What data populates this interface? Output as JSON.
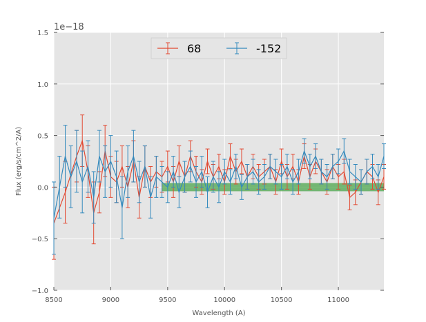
{
  "chart_data": {
    "type": "line",
    "title": "",
    "xlabel": "Wavelength (A)",
    "ylabel": "Flux (erg/s/cm^2/A)",
    "y_offset_text": "1e−18",
    "xlim": [
      8500,
      11400
    ],
    "ylim": [
      -1.0,
      1.5
    ],
    "x_ticks": [
      8500,
      9000,
      9500,
      10000,
      10500,
      11000
    ],
    "x_tick_labels": [
      "8500",
      "9000",
      "9500",
      "10000",
      "10500",
      "11000"
    ],
    "y_ticks": [
      -1.0,
      -0.5,
      0.0,
      0.5,
      1.0,
      1.5
    ],
    "y_tick_labels": [
      "−1.0",
      "−0.5",
      "0.0",
      "0.5",
      "1.0",
      "1.5"
    ],
    "grid": true,
    "legend_position": "top-center",
    "colors": {
      "background": "#e5e5e5",
      "series_68": "#e24a33",
      "series_neg152": "#348abd",
      "band": "#4ca64c",
      "grid": "#ffffff"
    },
    "band": {
      "x_start": 9450,
      "x_end": 11400,
      "y_low": -0.04,
      "y_high": 0.04
    },
    "series": [
      {
        "name": "68",
        "x": [
          8500,
          8600,
          8700,
          8750,
          8800,
          8850,
          8900,
          8950,
          9000,
          9050,
          9100,
          9150,
          9200,
          9250,
          9300,
          9350,
          9400,
          9450,
          9500,
          9550,
          9600,
          9650,
          9700,
          9750,
          9800,
          9850,
          9900,
          9950,
          10000,
          10050,
          10100,
          10150,
          10200,
          10250,
          10300,
          10350,
          10400,
          10450,
          10500,
          10550,
          10600,
          10650,
          10700,
          10750,
          10800,
          10850,
          10900,
          10950,
          11000,
          11050,
          11100,
          11150,
          11200,
          11250,
          11300,
          11350,
          11400
        ],
        "y": [
          -0.35,
          -0.05,
          0.3,
          0.45,
          0.15,
          -0.25,
          -0.05,
          0.35,
          0.1,
          0.05,
          0.2,
          0.0,
          0.25,
          -0.1,
          0.2,
          0.05,
          0.15,
          0.1,
          0.2,
          0.05,
          0.25,
          0.1,
          0.3,
          0.15,
          0.05,
          0.25,
          0.1,
          0.2,
          0.05,
          0.3,
          0.15,
          0.25,
          0.1,
          0.2,
          0.1,
          0.15,
          0.2,
          0.05,
          0.25,
          0.1,
          0.2,
          0.05,
          0.3,
          0.1,
          0.25,
          0.15,
          0.05,
          0.2,
          0.1,
          0.15,
          -0.1,
          -0.05,
          0.05,
          0.15,
          0.1,
          -0.05,
          0.1
        ],
        "error": [
          0.35,
          0.3,
          0.25,
          0.25,
          0.25,
          0.3,
          0.2,
          0.25,
          0.2,
          0.2,
          0.2,
          0.2,
          0.2,
          0.2,
          0.2,
          0.15,
          0.15,
          0.15,
          0.15,
          0.15,
          0.15,
          0.15,
          0.15,
          0.15,
          0.12,
          0.12,
          0.12,
          0.12,
          0.12,
          0.12,
          0.12,
          0.12,
          0.12,
          0.12,
          0.12,
          0.12,
          0.12,
          0.12,
          0.12,
          0.12,
          0.12,
          0.12,
          0.12,
          0.12,
          0.12,
          0.12,
          0.12,
          0.12,
          0.12,
          0.12,
          0.12,
          0.12,
          0.12,
          0.12,
          0.12,
          0.12,
          0.12
        ]
      },
      {
        "name": "-152",
        "x": [
          8500,
          8550,
          8600,
          8650,
          8700,
          8750,
          8800,
          8850,
          8900,
          8950,
          9000,
          9050,
          9100,
          9150,
          9200,
          9250,
          9300,
          9350,
          9400,
          9450,
          9500,
          9550,
          9600,
          9650,
          9700,
          9750,
          9800,
          9850,
          9900,
          9950,
          10000,
          10050,
          10100,
          10150,
          10200,
          10250,
          10300,
          10350,
          10400,
          10450,
          10500,
          10550,
          10600,
          10650,
          10700,
          10750,
          10800,
          10850,
          10900,
          10950,
          11000,
          11050,
          11100,
          11150,
          11200,
          11250,
          11300,
          11350,
          11400
        ],
        "y": [
          -0.3,
          0.0,
          0.3,
          0.1,
          0.25,
          0.05,
          0.2,
          -0.1,
          0.3,
          0.15,
          0.25,
          0.1,
          -0.2,
          0.15,
          0.3,
          0.05,
          0.2,
          -0.1,
          0.1,
          0.05,
          0.0,
          0.15,
          -0.05,
          0.1,
          0.2,
          0.05,
          0.15,
          -0.05,
          0.1,
          0.0,
          0.15,
          0.05,
          0.2,
          0.0,
          0.1,
          0.15,
          0.05,
          0.1,
          0.2,
          0.15,
          0.1,
          0.2,
          0.05,
          0.15,
          0.35,
          0.2,
          0.3,
          0.15,
          0.1,
          0.2,
          0.25,
          0.35,
          0.15,
          0.1,
          0.05,
          0.15,
          0.2,
          0.1,
          0.3
        ],
        "error": [
          0.35,
          0.3,
          0.3,
          0.3,
          0.3,
          0.3,
          0.25,
          0.25,
          0.25,
          0.25,
          0.25,
          0.25,
          0.3,
          0.25,
          0.25,
          0.2,
          0.2,
          0.2,
          0.2,
          0.15,
          0.15,
          0.15,
          0.15,
          0.15,
          0.15,
          0.15,
          0.15,
          0.15,
          0.15,
          0.15,
          0.12,
          0.12,
          0.12,
          0.12,
          0.12,
          0.12,
          0.12,
          0.12,
          0.12,
          0.12,
          0.12,
          0.12,
          0.12,
          0.12,
          0.12,
          0.12,
          0.12,
          0.12,
          0.12,
          0.12,
          0.12,
          0.12,
          0.12,
          0.12,
          0.12,
          0.12,
          0.12,
          0.12,
          0.12
        ]
      }
    ]
  }
}
